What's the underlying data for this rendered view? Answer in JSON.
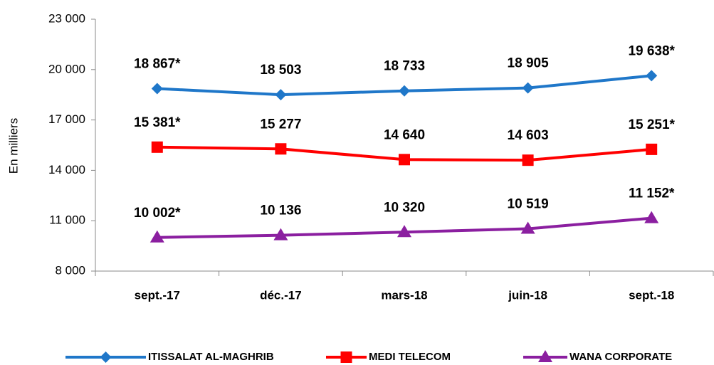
{
  "chart_data": {
    "type": "line",
    "ylabel": "En milliers",
    "categories": [
      "sept.-17",
      "déc.-17",
      "mars-18",
      "juin-18",
      "sept.-18"
    ],
    "series": [
      {
        "name": "ITISSALAT AL-MAGHRIB",
        "color": "#1f77c9",
        "marker": "diamond",
        "values": [
          18867,
          18503,
          18733,
          18905,
          19638
        ],
        "value_labels": [
          "18 867*",
          "18 503",
          "18 733",
          "18 905",
          "19 638*"
        ]
      },
      {
        "name": "MEDI TELECOM",
        "color": "#ff0000",
        "marker": "square",
        "values": [
          15381,
          15277,
          14640,
          14603,
          15251
        ],
        "value_labels": [
          "15 381*",
          "15 277",
          "14 640",
          "14 603",
          "15 251*"
        ]
      },
      {
        "name": "WANA CORPORATE",
        "color": "#8b1fa0",
        "marker": "triangle",
        "values": [
          10002,
          10136,
          10320,
          10519,
          11152
        ],
        "value_labels": [
          "10 002*",
          "10 136",
          "10 320",
          "10 519",
          "11 152*"
        ]
      }
    ],
    "ylim": [
      8000,
      23000
    ],
    "yticks": [
      {
        "value": 8000,
        "label": "8 000"
      },
      {
        "value": 11000,
        "label": "11 000"
      },
      {
        "value": 14000,
        "label": "14 000"
      },
      {
        "value": 17000,
        "label": "17 000"
      },
      {
        "value": 20000,
        "label": "20 000"
      },
      {
        "value": 23000,
        "label": "23 000"
      }
    ],
    "legend": "bottom"
  }
}
